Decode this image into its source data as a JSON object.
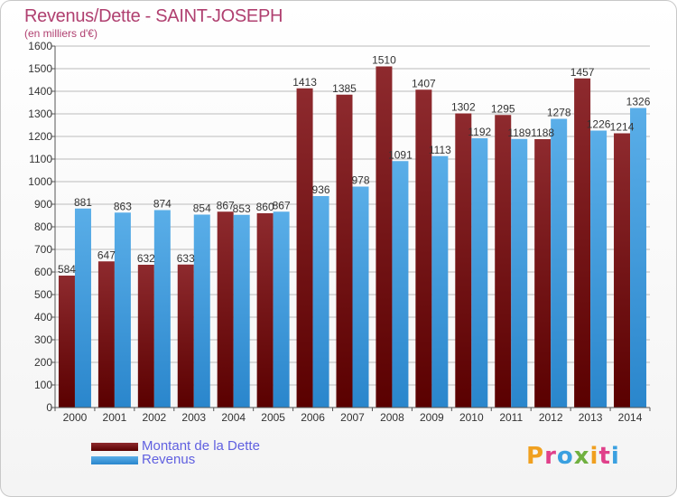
{
  "title": "Revenus/Dette - SAINT-JOSEPH",
  "subtitle": "(en milliers d'€)",
  "logo": {
    "text": "Proxiti",
    "colors": [
      "#f0a020",
      "#e0408a",
      "#3aa0e0",
      "#70b040",
      "#f0a020",
      "#e0408a",
      "#3aa0e0"
    ]
  },
  "colors": {
    "dette": "#8a1a1e",
    "revenus": "#3a96dc",
    "grid": "#bbbbbb",
    "axis": "#555555"
  },
  "chart_data": {
    "type": "bar",
    "categories": [
      "2000",
      "2001",
      "2002",
      "2003",
      "2004",
      "2005",
      "2006",
      "2007",
      "2008",
      "2009",
      "2010",
      "2011",
      "2012",
      "2013",
      "2014"
    ],
    "series": [
      {
        "name": "Montant de la Dette",
        "values": [
          584,
          647,
          632,
          633,
          867,
          860,
          1413,
          1385,
          1510,
          1407,
          1302,
          1295,
          1188,
          1457,
          1214
        ]
      },
      {
        "name": "Revenus",
        "values": [
          881,
          863,
          874,
          854,
          853,
          867,
          936,
          978,
          1091,
          1113,
          1192,
          1189,
          1278,
          1226,
          1326
        ]
      }
    ],
    "ylim": [
      0,
      1600
    ],
    "yticks": [
      0,
      100,
      200,
      300,
      400,
      500,
      600,
      700,
      800,
      900,
      1000,
      1100,
      1200,
      1300,
      1400,
      1500,
      1600
    ],
    "grid": true,
    "legend": "bottom-left"
  }
}
